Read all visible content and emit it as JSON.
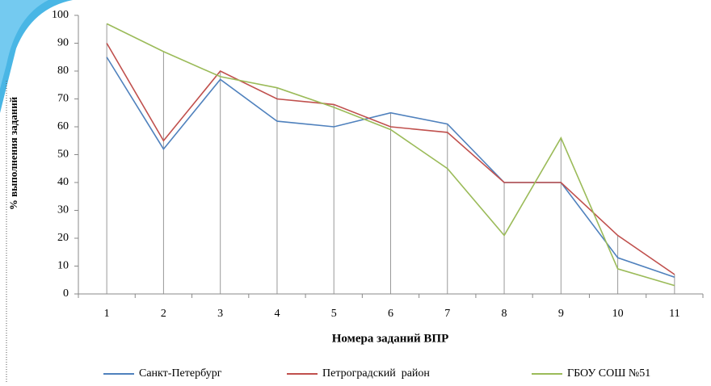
{
  "chart_data": {
    "type": "line",
    "y_axis_label": "% выполнения заданий",
    "x_axis_label": "Номера заданий ВПР",
    "categories": [
      "1",
      "2",
      "3",
      "4",
      "5",
      "6",
      "7",
      "8",
      "9",
      "10",
      "11"
    ],
    "series": [
      {
        "name": "Санкт-Петербург",
        "color": "#4f81bd",
        "values": [
          85,
          52,
          77,
          62,
          60,
          65,
          61,
          40,
          40,
          13,
          6
        ]
      },
      {
        "name": "Петроградский  район",
        "color": "#c0504d",
        "values": [
          90,
          55,
          80,
          70,
          68,
          60,
          58,
          40,
          40,
          21,
          7
        ]
      },
      {
        "name": "ГБОУ СОШ №51",
        "color": "#9bbb59",
        "values": [
          97,
          87,
          78,
          74,
          67,
          59,
          45,
          21,
          56,
          9,
          3
        ]
      }
    ],
    "ylim": [
      0,
      100
    ],
    "yticks": [
      0,
      10,
      20,
      30,
      40,
      50,
      60,
      70,
      80,
      90,
      100
    ],
    "drop_lines": true,
    "legend": "bottom"
  }
}
